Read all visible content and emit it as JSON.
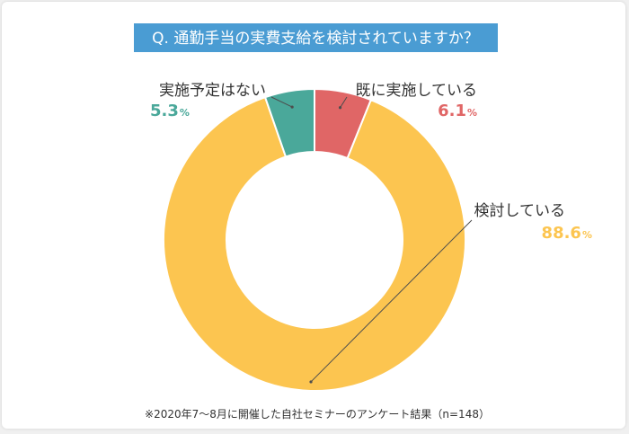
{
  "chart_data": {
    "type": "pie",
    "title": "Q. 通勤手当の実費支給を検討されていますか？",
    "categories": [
      "既に実施している",
      "検討している",
      "実施予定はない"
    ],
    "values": [
      6.1,
      88.6,
      5.3
    ],
    "value_labels": [
      "6.1",
      "88.6",
      "5.3"
    ],
    "unit": "%",
    "colors": [
      "#e06666",
      "#fcc550",
      "#4aa89a"
    ],
    "note": "※2020年7〜8月に開催した自社セミナーのアンケート結果（n=148）"
  },
  "style": {
    "title_bg": "#4a9cd3",
    "leader_line": "#4d4d4d",
    "slice_border": "#ffffff"
  }
}
